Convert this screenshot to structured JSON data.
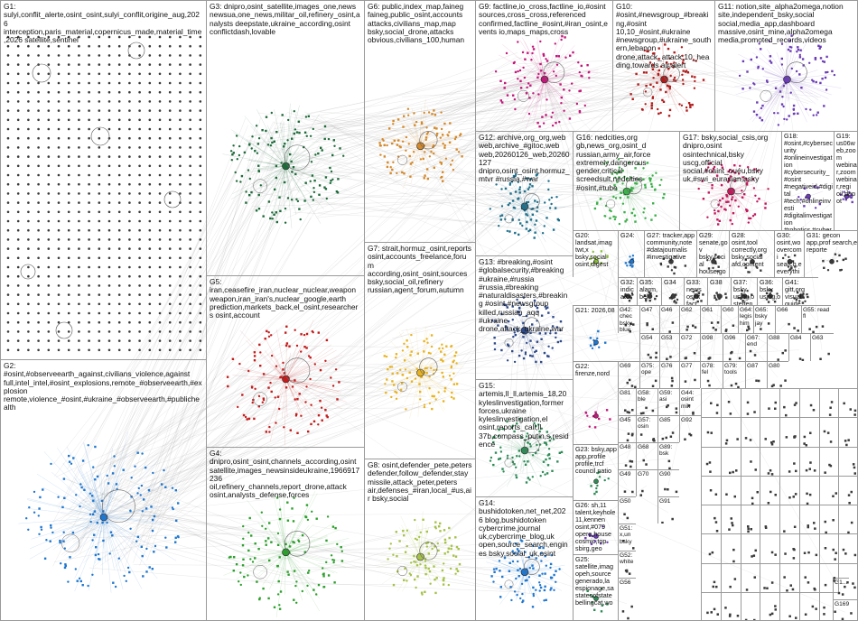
{
  "groups": [
    {
      "id": "G1",
      "label": "G1: sulyi,conflit_alerte,osint_osint,sulyi_conflit,origine_aug,2026 interception,paris_material,copernicus_made,material_time,2026 satellite,sentinel",
      "color": "#3a3a3a"
    },
    {
      "id": "G2",
      "label": "G2: #osint,#observeearth_against,civilians_violence,against full,intel_intel,#osint_explosions,remote_#observeearth,#explosion remote,violence_#osint,#ukraine_#observeearth,#publichealth",
      "color": "#1f77d0"
    },
    {
      "id": "G3",
      "label": "G3: dnipro,osint_satellite,images_one,news newsua,one_news,militar_oil,refinery_osint,analysts deepstate,ukraine_according,osint conflictdash,lovable",
      "color": "#1e6b3a"
    },
    {
      "id": "G4",
      "label": "G4: dnipro,osint_osint,channels_according,osint satellite,images_newsinsideukraine,1966917236 oil,refinery_channels,report_drone,attack osint,analysts_defense,forces",
      "color": "#2ca02c"
    },
    {
      "id": "G5",
      "label": "G5: iran,ceasefire_iran,nuclear_nuclear,weapon weapon,iran_iran's,nuclear_google,earth prediction,markets_back,el_osint,researchers osint,account",
      "color": "#c41b1b"
    },
    {
      "id": "G6",
      "label": "G6: public,index_map,faineg faineg,public_osint,accounts attacks,civilians_map,map bsky,social_drone,attacks obvious,civilians_100,human",
      "color": "#d4892a"
    },
    {
      "id": "G7",
      "label": "G7: strait,hormuz_osint,reports osint,accounts_freelance,forum according,osint_osint,sources bsky,social_oil,refinery russian,agent_forum,autumn",
      "color": "#e8b321"
    },
    {
      "id": "G8",
      "label": "G8: osint,defender_pete,peters defender,follow_defender,stay missile,attack_peter,peters air,defenses_#iran,local_#us,air bsky,social",
      "color": "#a6c24a"
    },
    {
      "id": "G9",
      "label": "G9: factline,io_cross,factline_io,#osint sources,cross_cross,referenced confirmed,factline_#osint,#iran_osint,events io,maps_maps,cross",
      "color": "#c2187a"
    },
    {
      "id": "G10",
      "label": "G10: #osint,#newsgroup_#breaking,#osint 10,10_#osint,#ukraine #newsgroup,#ukraine_southern,lebanon drone,attack_attack,10_heading,towards air,alert",
      "color": "#b01c1c"
    },
    {
      "id": "G11",
      "label": "G11: notion,site_alpha2omega,notion site,independent_bsky,social social,media_app,dashboard massive,osint_mine,alpha2omega media,promoted_records,videos",
      "color": "#6a3cb5"
    },
    {
      "id": "G12",
      "label": "G12: archive,org_org,web web,archive_#gitoc,web web,20260126_web,20260127 dnipro,osint_osint,hormuz_mtvr #russia,#war",
      "color": "#1f6f8b"
    },
    {
      "id": "G13",
      "label": "G13: #breaking,#osint #globalsecurity,#breaking #ukraine,#russia #russia,#breaking #naturaldisasters,#breaking #osint,#newsgroup killed,russian_aqq #ukraine drone,attack_ukraine,war",
      "color": "#2f4a8a"
    },
    {
      "id": "G14",
      "label": "G14: bushidotoken,net_net,2026 blog,bushidotoken cybercrime,journal uk,cybercrime_blog,uk open,source_search,engines bsky,social_uk,osint",
      "color": "#1f77d0"
    },
    {
      "id": "G15",
      "label": "G15: artemis,ll_ll,artemis_18,20 kyleslinvestigation,former forces,ukraine kyleslinvestigation,el osint,reports_call,ll 37b,compass_putin,s,residence",
      "color": "#2e8b57"
    },
    {
      "id": "G16",
      "label": "G16: nedcities,org gb,news_org,osint_d russian,army_air,force extremely,dangerous gender,critical screedsult,nedcities #osint,#tube",
      "color": "#3cb04a"
    },
    {
      "id": "G17",
      "label": "G17: bsky,social_csis,org dnipro,osint osintechnical,bsky uscg,official social,#osint_ouéu,bsky uk,#swi_eurasian,bsky",
      "color": "#c2185b"
    },
    {
      "id": "G18",
      "label": "G18: #osint,#cybersecurity #onlineinvestigation #cybersecurity_#osint #negativeid,#digital #tech,#onlineinvesti #digitalinvestigation #robotics,#cyberpsy #cyberpsychology,#... #ai,#tech open,source",
      "color": "#6a3cb5"
    },
    {
      "id": "G19",
      "label": "G19: us06web,zoom webinar,zoom webinar,regi oil,depot",
      "color": "#6a3cb5"
    },
    {
      "id": "G20",
      "label": "G20: landsat,imag twt,x bsky,social osint,digest",
      "color": "#8bbf3a"
    },
    {
      "id": "G21",
      "label": "G21: 2026,08",
      "color": "#1f77d0"
    },
    {
      "id": "G22",
      "label": "G22: firenze,nord",
      "color": "#c2187a"
    },
    {
      "id": "G23",
      "label": "G23: bsky,app app,profile profile,trcf council,natio",
      "color": "#2e8b57"
    },
    {
      "id": "G24",
      "label": "G24:",
      "color": "#1f77d0"
    },
    {
      "id": "G25",
      "label": "G25: satellite,imag opeh,source generado,la espionage,sa statesofstate bellingcat,wo",
      "color": "#2e8b57"
    },
    {
      "id": "G26",
      "label": "G26: sh,11 talent,keyhole 11,kennen osint,#079 opera,house cosmic,top sbirg,geo",
      "color": "#6a3cb5"
    },
    {
      "id": "G27",
      "label": "G27: tracker,app community,note #datajournalis #investigative",
      "color": "#3a3a3a"
    },
    {
      "id": "G28",
      "label": "G28: osint,tool correctly,org bsky,social afd,content",
      "color": "#3a3a3a"
    },
    {
      "id": "G29",
      "label": "G29: senate,gov bsky,social house,gov",
      "color": "#3a3a3a"
    },
    {
      "id": "G30",
      "label": "G30: osint,wo overcomi search,e everythi",
      "color": "#3a3a3a"
    },
    {
      "id": "G31",
      "label": "G31: gecon app,prof search,e reporte",
      "color": "#3a3a3a"
    },
    {
      "id": "G32",
      "label": "G32: indicator",
      "color": "#3a3a3a"
    },
    {
      "id": "G33",
      "label": "G33: news osint fact",
      "color": "#3a3a3a"
    },
    {
      "id": "G34",
      "label": "G34",
      "color": "#3a3a3a"
    },
    {
      "id": "G35",
      "label": "G35: alarm,bel",
      "color": "#3a3a3a"
    },
    {
      "id": "G36",
      "label": "G36: bsky using,o",
      "color": "#3a3a3a"
    },
    {
      "id": "G37",
      "label": "G37: bsky using,o steffen",
      "color": "#3a3a3a"
    },
    {
      "id": "G38",
      "label": "G38",
      "color": "#3a3a3a"
    },
    {
      "id": "G41",
      "label": "G41: gitt,org visual guide",
      "color": "#3a3a3a"
    },
    {
      "id": "G42",
      "label": "G42: chec bsky blue",
      "color": "#3a3a3a"
    },
    {
      "id": "G44",
      "label": "G44: osint mik",
      "color": "#3a3a3a"
    },
    {
      "id": "G45",
      "label": "G45",
      "color": "#3a3a3a"
    },
    {
      "id": "G46",
      "label": "G46",
      "color": "#3a3a3a"
    },
    {
      "id": "G47",
      "label": "G47",
      "color": "#3a3a3a"
    },
    {
      "id": "G48",
      "label": "G48",
      "color": "#3a3a3a"
    },
    {
      "id": "G49",
      "label": "G49",
      "color": "#3a3a3a"
    },
    {
      "id": "G50",
      "label": "G50",
      "color": "#3a3a3a"
    },
    {
      "id": "G51",
      "label": "G51: x,un bsky",
      "color": "#3a3a3a"
    },
    {
      "id": "G52",
      "label": "G52: white",
      "color": "#3a3a3a"
    },
    {
      "id": "G53",
      "label": "G53",
      "color": "#3a3a3a"
    },
    {
      "id": "G54",
      "label": "G54",
      "color": "#3a3a3a"
    },
    {
      "id": "G55",
      "label": "G55: read fl",
      "color": "#3a3a3a"
    },
    {
      "id": "G56",
      "label": "G56",
      "color": "#3a3a3a"
    },
    {
      "id": "G57",
      "label": "G57: osin",
      "color": "#3a3a3a"
    },
    {
      "id": "G58",
      "label": "G58: ble",
      "color": "#3a3a3a"
    },
    {
      "id": "G59",
      "label": "G59: asi",
      "color": "#3a3a3a"
    },
    {
      "id": "G60",
      "label": "G60",
      "color": "#3a3a3a"
    },
    {
      "id": "G61",
      "label": "G61",
      "color": "#3a3a3a"
    },
    {
      "id": "G62",
      "label": "G62",
      "color": "#3a3a3a"
    },
    {
      "id": "G63",
      "label": "G63",
      "color": "#3a3a3a"
    },
    {
      "id": "G64",
      "label": "G64: legis him",
      "color": "#3a3a3a"
    },
    {
      "id": "G65",
      "label": "G65: bsky jay",
      "color": "#3a3a3a"
    },
    {
      "id": "G66",
      "label": "G66",
      "color": "#3a3a3a"
    },
    {
      "id": "G67",
      "label": "G67: end",
      "color": "#3a3a3a"
    },
    {
      "id": "G68",
      "label": "G68",
      "color": "#3a3a3a"
    },
    {
      "id": "G69",
      "label": "G69",
      "color": "#3a3a3a"
    },
    {
      "id": "G70",
      "label": "G70",
      "color": "#3a3a3a"
    },
    {
      "id": "G72",
      "label": "G72",
      "color": "#3a3a3a"
    },
    {
      "id": "G75",
      "label": "G75: ope",
      "color": "#3a3a3a"
    },
    {
      "id": "G76",
      "label": "G76",
      "color": "#3a3a3a"
    },
    {
      "id": "G77",
      "label": "G77",
      "color": "#3a3a3a"
    },
    {
      "id": "G78",
      "label": "G78: fel",
      "color": "#3a3a3a"
    },
    {
      "id": "G79",
      "label": "G79: tools",
      "color": "#3a3a3a"
    },
    {
      "id": "G80",
      "label": "G80",
      "color": "#3a3a3a"
    },
    {
      "id": "G81",
      "label": "G81",
      "color": "#3a3a3a"
    },
    {
      "id": "G84",
      "label": "G84",
      "color": "#3a3a3a"
    },
    {
      "id": "G85",
      "label": "G85",
      "color": "#3a3a3a"
    },
    {
      "id": "G87",
      "label": "G87",
      "color": "#3a3a3a"
    },
    {
      "id": "G88",
      "label": "G88",
      "color": "#3a3a3a"
    },
    {
      "id": "G89",
      "label": "G89: bsk",
      "color": "#3a3a3a"
    },
    {
      "id": "G90",
      "label": "G90",
      "color": "#3a3a3a"
    },
    {
      "id": "G91",
      "label": "G91",
      "color": "#3a3a3a"
    },
    {
      "id": "G92",
      "label": "G92",
      "color": "#3a3a3a"
    },
    {
      "id": "G96",
      "label": "G96",
      "color": "#3a3a3a"
    },
    {
      "id": "G98",
      "label": "G98",
      "color": "#3a3a3a"
    },
    {
      "id": "G100",
      "label": "G1...",
      "color": "#3a3a3a"
    },
    {
      "id": "G169",
      "label": "G169",
      "color": "#3a3a3a"
    }
  ]
}
